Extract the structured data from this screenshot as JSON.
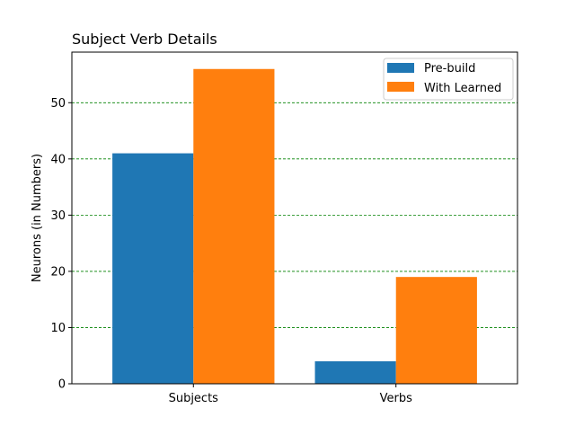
{
  "chart_data": {
    "type": "bar",
    "title": "Subject Verb Details",
    "xlabel": "",
    "ylabel": "Neurons (in Numbers)",
    "categories": [
      "Subjects",
      "Verbs"
    ],
    "series": [
      {
        "name": "Pre-build",
        "values": [
          41,
          4
        ],
        "color": "#1f77b4"
      },
      {
        "name": "With Learned",
        "values": [
          56,
          19
        ],
        "color": "#ff7f0e"
      }
    ],
    "ylim": [
      0,
      59
    ],
    "yticks": [
      0,
      10,
      20,
      30,
      40,
      50
    ],
    "grid": {
      "axis": "y",
      "style": "dashed",
      "color": "#008000"
    },
    "legend_position": "top-right"
  }
}
